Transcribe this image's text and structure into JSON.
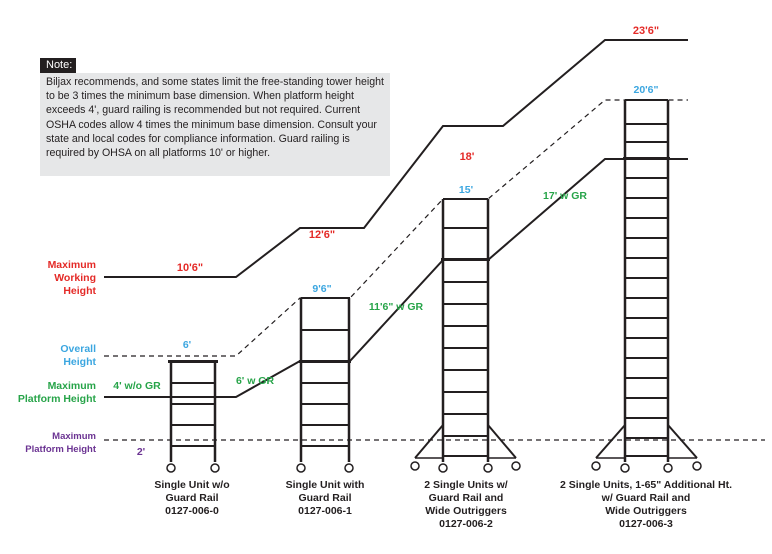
{
  "note": {
    "title": "Note:",
    "text": "Biljax recommends, and some states limit the free-standing tower height to be 3 times the minimum base dimension. When platform height exceeds 4', guard railing is recommended but not required.  Current OSHA codes allow 4 times the minimum base dimension. Consult your state and local codes for compliance information. Guard railing is required by OHSA on all platforms 10' or higher."
  },
  "labels": {
    "max_working_height": [
      "Maximum",
      "Working",
      "Height"
    ],
    "overall_height": [
      "Overall",
      "Height"
    ],
    "max_platform_height": [
      "Maximum",
      "Platform Height"
    ],
    "max_platform_height_2": [
      "Maximum",
      "Platform Height"
    ]
  },
  "working_heights": [
    "10'6\"",
    "12'6\"",
    "18'",
    "23'6\""
  ],
  "overall_heights": [
    "6'",
    "9'6\"",
    "15'",
    "20'6\""
  ],
  "platform_heights": [
    "4' w/o GR",
    "6' w GR",
    "11'6\" w GR",
    "17' w GR"
  ],
  "min_platform_height": "2'",
  "units": [
    {
      "caption": [
        "Single Unit w/o",
        "Guard Rail",
        "0127-006-0"
      ]
    },
    {
      "caption": [
        "Single Unit with",
        "Guard Rail",
        "0127-006-1"
      ]
    },
    {
      "caption": [
        "2 Single Units w/",
        "Guard Rail and",
        "Wide Outriggers",
        "0127-006-2"
      ]
    },
    {
      "caption": [
        "2 Single Units, 1-65\" Additional Ht.",
        "w/ Guard Rail and",
        "Wide Outriggers",
        "0127-006-3"
      ]
    }
  ],
  "colors": {
    "working": "#e42a27",
    "overall": "#3ba6e0",
    "platform": "#27a449",
    "min_platform": "#6b3392",
    "line": "#231f20"
  }
}
